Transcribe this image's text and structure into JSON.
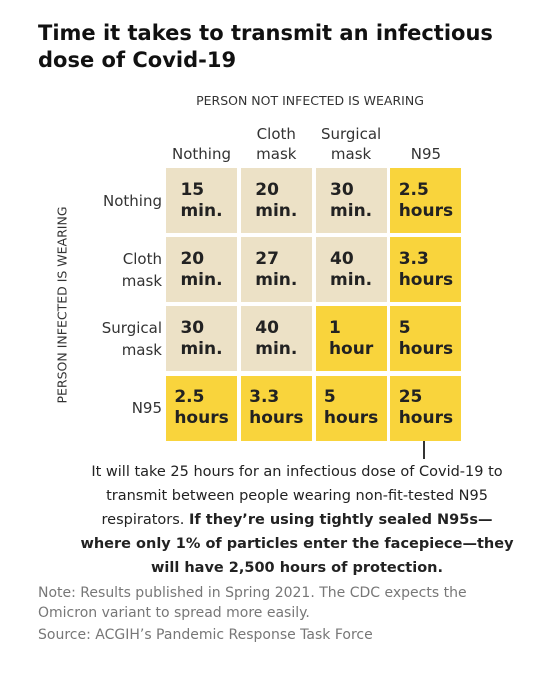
{
  "title": "Time it takes to transmit an infectious dose of Covid-19",
  "column_header": "PERSON NOT INFECTED IS WEARING",
  "row_header": "PERSON INFECTED IS WEARING",
  "columns": [
    "Nothing",
    "Cloth mask",
    "Surgical mask",
    "N95"
  ],
  "rows": [
    {
      "label": "Nothing",
      "cells": [
        {
          "text": "15 min.",
          "color": "#ece1c6"
        },
        {
          "text": "20 min.",
          "color": "#ece1c6"
        },
        {
          "text": "30 min.",
          "color": "#ece1c6"
        },
        {
          "text": "2.5 hours",
          "color": "#f9d43c"
        }
      ]
    },
    {
      "label": "Cloth mask",
      "cells": [
        {
          "text": "20 min.",
          "color": "#ece1c6"
        },
        {
          "text": "27 min.",
          "color": "#ece1c6"
        },
        {
          "text": "40 min.",
          "color": "#ece1c6"
        },
        {
          "text": "3.3 hours",
          "color": "#f9d43c"
        }
      ]
    },
    {
      "label": "Surgical mask",
      "cells": [
        {
          "text": "30 min.",
          "color": "#ece1c6"
        },
        {
          "text": "40 min.",
          "color": "#ece1c6"
        },
        {
          "text": "1 hour",
          "color": "#f9d43c"
        },
        {
          "text": "5 hours",
          "color": "#f9d43c"
        }
      ]
    },
    {
      "label": "N95",
      "cells": [
        {
          "text": "2.5 hours",
          "color": "#f9d43c"
        },
        {
          "text": "3.3 hours",
          "color": "#f9d43c"
        },
        {
          "text": "5 hours",
          "color": "#f9d43c"
        },
        {
          "text": "25 hours",
          "color": "#f9d43c"
        }
      ]
    }
  ],
  "annotation": {
    "text": "It will take 25 hours for an infectious dose of Covid-19 to transmit between people wearing non-fit-tested N95 respirators.",
    "bold": "If they’re using tightly sealed N95s—where only 1% of particles enter the facepiece—they will have 2,500 hours of protection."
  },
  "note": "Note: Results published in Spring 2021. The CDC expects the Omicron variant to spread more easily.",
  "source": "Source: ACGIH’s Pandemic Response Task Force"
}
